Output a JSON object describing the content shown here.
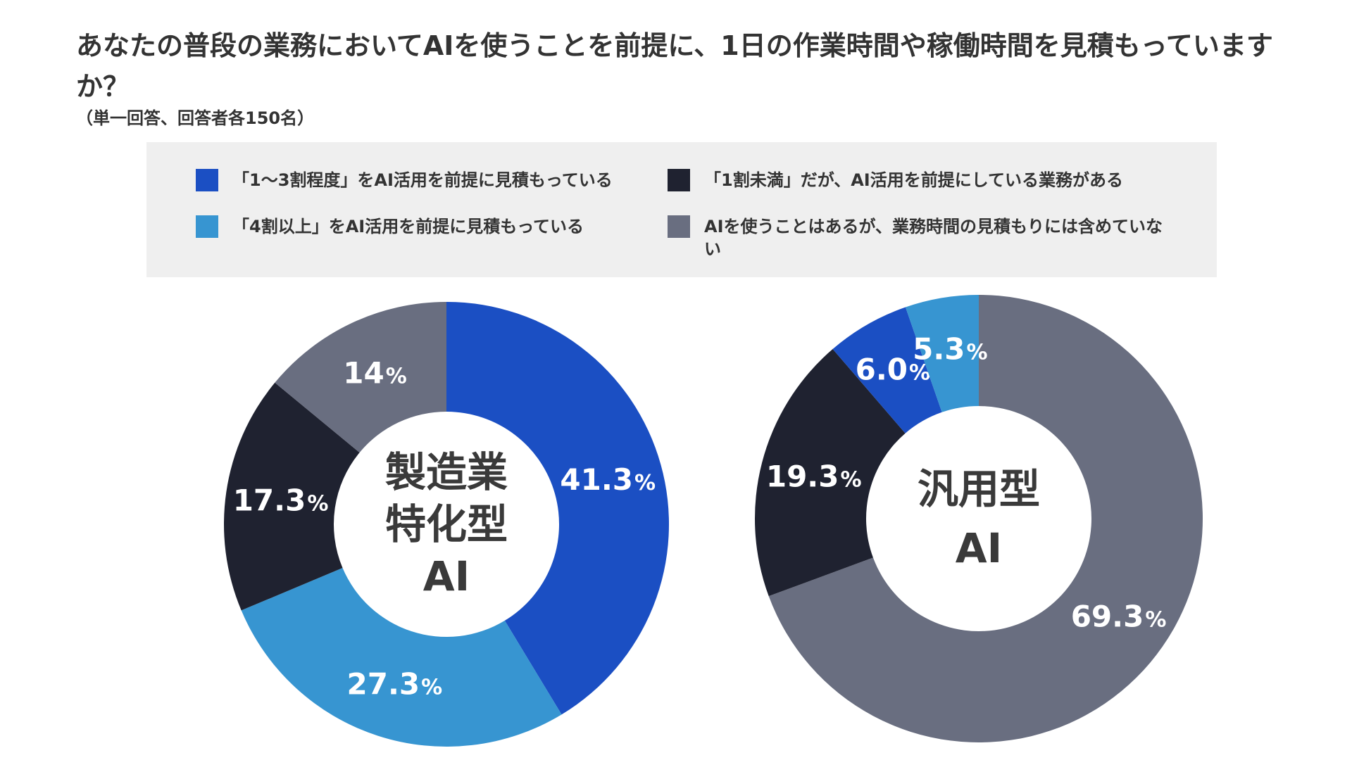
{
  "title": "あなたの普段の業務においてAIを使うことを前提に、1日の作業時間や稼働時間を見積もっていますか？",
  "subtitle": "（単一回答、回答者各150名）",
  "legend": [
    {
      "label": "「1〜3割程度」をAI活用を前提に見積もっている",
      "color": "#1b4fc3"
    },
    {
      "label": "「1割未満」だが、AI活用を前提にしている業務がある",
      "color": "#1f2230"
    },
    {
      "label": "「4割以上」をAI活用を前提に見積もっている",
      "color": "#3795d1"
    },
    {
      "label": "AIを使うことはあるが、業務時間の見積もりには含めていない",
      "color": "#696e80"
    }
  ],
  "chart_data": [
    {
      "type": "pie",
      "donut": true,
      "center_label": [
        "製造業",
        "特化型",
        "AI"
      ],
      "start": "top-clockwise",
      "slices": [
        {
          "category": "「1〜3割程度」をAI活用を前提に見積もっている",
          "value": 41.3,
          "label": "41.3",
          "color": "#1b4fc3"
        },
        {
          "category": "「4割以上」をAI活用を前提に見積もっている",
          "value": 27.3,
          "label": "27.3",
          "color": "#3795d1"
        },
        {
          "category": "「1割未満」だが、AI活用を前提にしている業務がある",
          "value": 17.3,
          "label": "17.3",
          "color": "#1f2230"
        },
        {
          "category": "AIを使うことはあるが、業務時間の見積もりには含めていない",
          "value": 14,
          "label": "14",
          "color": "#696e80"
        }
      ],
      "unit": "%"
    },
    {
      "type": "pie",
      "donut": true,
      "center_label": [
        "汎用型",
        "AI"
      ],
      "start": "top-clockwise",
      "slices": [
        {
          "category": "AIを使うことはあるが、業務時間の見積もりには含めていない",
          "value": 69.3,
          "label": "69.3",
          "color": "#696e80"
        },
        {
          "category": "「1割未満」だが、AI活用を前提にしている業務がある",
          "value": 19.3,
          "label": "19.3",
          "color": "#1f2230"
        },
        {
          "category": "「1〜3割程度」をAI活用を前提に見積もっている",
          "value": 6.0,
          "label": "6.0",
          "color": "#1b4fc3"
        },
        {
          "category": "「4割以上」をAI活用を前提に見積もっている",
          "value": 5.3,
          "label": "5.3",
          "color": "#3795d1"
        }
      ],
      "unit": "%"
    }
  ]
}
